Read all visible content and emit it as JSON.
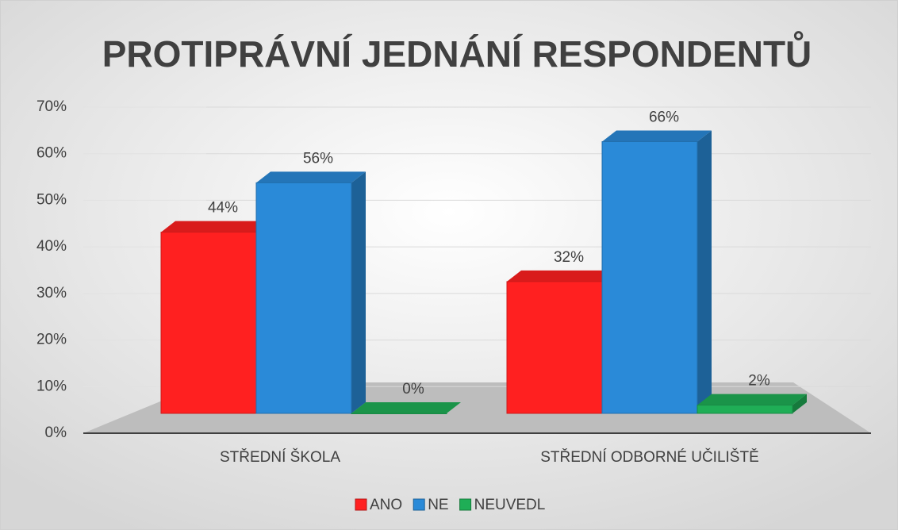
{
  "chart_data": {
    "type": "bar3d",
    "title": "PROTIPRÁVNÍ JEDNÁNÍ RESPONDENTŮ",
    "categories": [
      "STŘEDNÍ ŠKOLA",
      "STŘEDNÍ ODBORNÉ UČILIŠTĚ"
    ],
    "series": [
      {
        "name": "ANO",
        "color": "#ff2020",
        "values": [
          44,
          32
        ],
        "value_labels": [
          "44%",
          "32%"
        ]
      },
      {
        "name": "NE",
        "color": "#2a8ad8",
        "values": [
          56,
          66
        ],
        "value_labels": [
          "56%",
          "66%"
        ]
      },
      {
        "name": "NEUVEDL",
        "color": "#1fae56",
        "values": [
          0,
          2
        ],
        "value_labels": [
          "0%",
          "2%"
        ]
      }
    ],
    "ylim": [
      0,
      70
    ],
    "yticks": [
      {
        "value": 0,
        "label": "0%"
      },
      {
        "value": 10,
        "label": "10%"
      },
      {
        "value": 20,
        "label": "20%"
      },
      {
        "value": 30,
        "label": "30%"
      },
      {
        "value": 40,
        "label": "40%"
      },
      {
        "value": 50,
        "label": "50%"
      },
      {
        "value": 60,
        "label": "60%"
      },
      {
        "value": 70,
        "label": "70%"
      }
    ],
    "grid": true,
    "legend": "bottom"
  }
}
